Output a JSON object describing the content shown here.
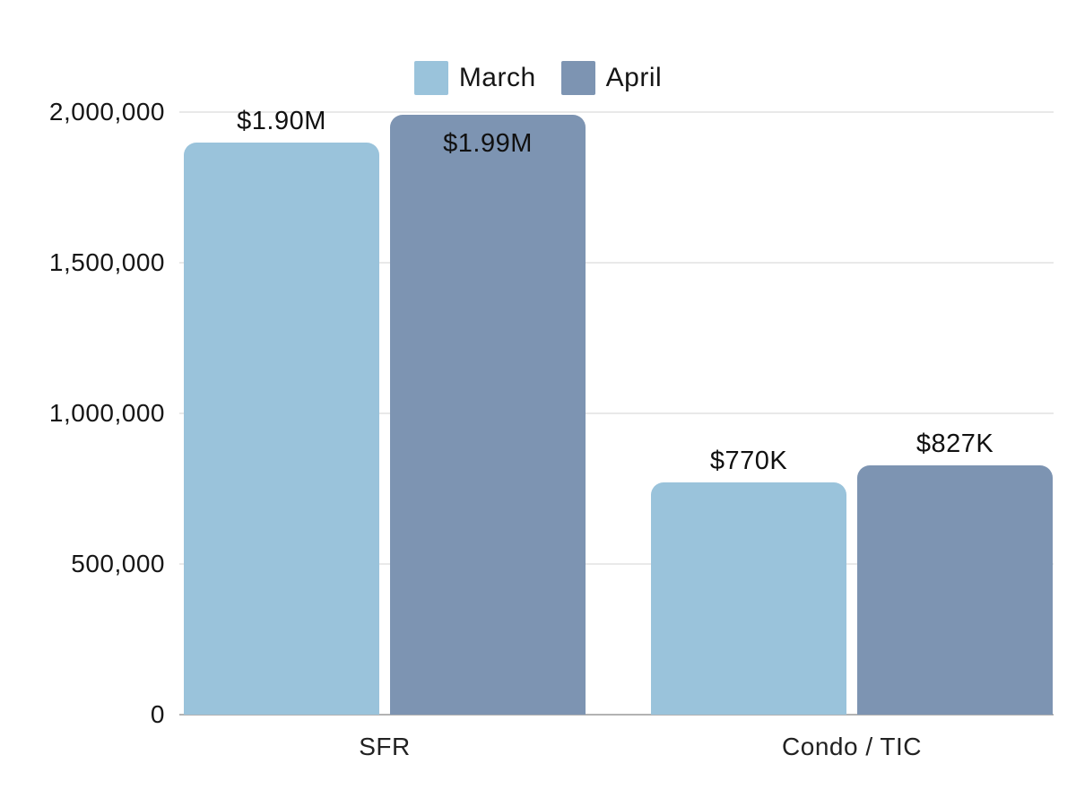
{
  "chart_data": {
    "type": "bar",
    "title": "",
    "xlabel": "",
    "ylabel": "",
    "categories": [
      "SFR",
      "Condo / TIC"
    ],
    "series": [
      {
        "name": "March",
        "color": "#9ac3db",
        "values": [
          1900000,
          770000
        ],
        "labels": [
          "$1.90M",
          "$770K"
        ]
      },
      {
        "name": "April",
        "color": "#7d94b2",
        "values": [
          1990000,
          827000
        ],
        "labels": [
          "$1.99M",
          "$827K"
        ]
      }
    ],
    "y_ticks": [
      {
        "value": 2000000,
        "label": "2,000,000"
      },
      {
        "value": 1500000,
        "label": "1,500,000"
      },
      {
        "value": 1000000,
        "label": "1,000,000"
      },
      {
        "value": 500000,
        "label": "500,000"
      },
      {
        "value": 0,
        "label": "0"
      }
    ],
    "ylim": [
      0,
      2000000
    ],
    "grid": "horizontal",
    "legend_position": "top-center",
    "colors": {
      "grid": "#e9e9e9",
      "axis_line": "#b3b3b3",
      "text": "#161616"
    }
  }
}
